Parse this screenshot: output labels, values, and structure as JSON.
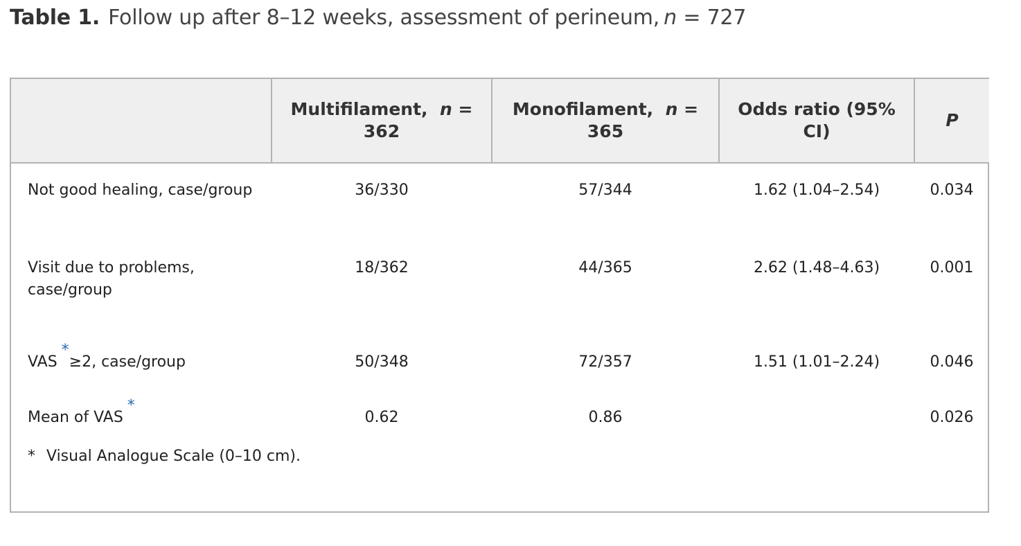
{
  "caption": {
    "label": "Table 1.",
    "text": "Follow up after 8–12 weeks, assessment of perineum,",
    "n_symbol": "n",
    "n_value": "= 727"
  },
  "header": {
    "col1_text": "Multifilament,",
    "col1_n": "n",
    "col1_value": "= 362",
    "col2_text": "Monofilament,",
    "col2_n": "n",
    "col2_value": "= 365",
    "col3": "Odds ratio (95% CI)",
    "col4": "P"
  },
  "rows": [
    {
      "label": "Not good healing, case/group",
      "multi": "36/330",
      "mono": "57/344",
      "or": "1.62 (1.04–2.54)",
      "p": "0.034"
    },
    {
      "label": "Visit due to problems, case/group",
      "multi": "18/362",
      "mono": "44/365",
      "or": "2.62 (1.48–4.63)",
      "p": "0.001"
    },
    {
      "label_a": "VAS",
      "fn_marker": "*",
      "label_b": "≥2, case/group",
      "multi": "50/348",
      "mono": "72/357",
      "or": "1.51 (1.01–2.24)",
      "p": "0.046"
    },
    {
      "label_a": "Mean of VAS",
      "fn_marker": "*",
      "multi": "0.62",
      "mono": "0.86",
      "or": "",
      "p": "0.026"
    }
  ],
  "footnote": {
    "marker": "*",
    "text": "Visual Analogue Scale (0–10 cm)."
  }
}
